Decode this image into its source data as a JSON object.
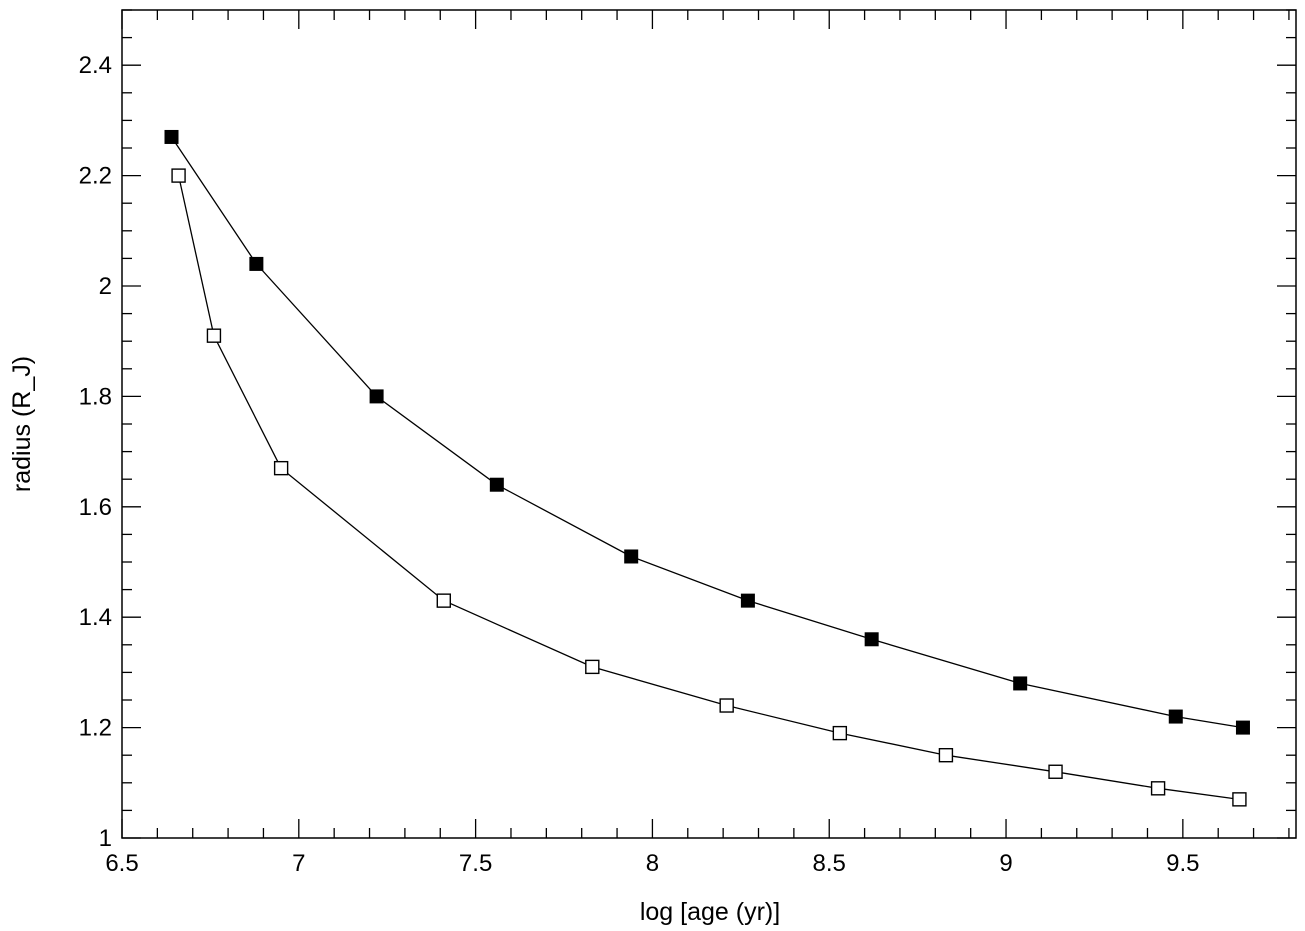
{
  "chart_data": {
    "type": "line",
    "title": "",
    "xlabel": "log [age (yr)]",
    "ylabel": "radius (R_J)",
    "xlim": [
      6.5,
      9.82
    ],
    "ylim": [
      1.0,
      2.5
    ],
    "x_ticks": [
      6.5,
      7,
      7.5,
      8,
      8.5,
      9,
      9.5
    ],
    "x_tick_labels": [
      "6.5",
      "7",
      "7.5",
      "8",
      "8.5",
      "9",
      "9.5"
    ],
    "y_ticks": [
      1,
      1.2,
      1.4,
      1.6,
      1.8,
      2,
      2.2,
      2.4
    ],
    "y_tick_labels": [
      "1",
      "1.2",
      "1.4",
      "1.6",
      "1.8",
      "2",
      "2.2",
      "2.4"
    ],
    "x_minor_step": 0.1,
    "y_minor_step": 0.05,
    "grid": false,
    "legend": "none",
    "series": [
      {
        "marker": "filled-square",
        "color": "#000000",
        "points": [
          {
            "x": 6.64,
            "y": 2.27
          },
          {
            "x": 6.88,
            "y": 2.04
          },
          {
            "x": 7.22,
            "y": 1.8
          },
          {
            "x": 7.56,
            "y": 1.64
          },
          {
            "x": 7.94,
            "y": 1.51
          },
          {
            "x": 8.27,
            "y": 1.43
          },
          {
            "x": 8.62,
            "y": 1.36
          },
          {
            "x": 9.04,
            "y": 1.28
          },
          {
            "x": 9.48,
            "y": 1.22
          },
          {
            "x": 9.67,
            "y": 1.2
          }
        ]
      },
      {
        "marker": "open-square",
        "color": "#000000",
        "points": [
          {
            "x": 6.66,
            "y": 2.2
          },
          {
            "x": 6.76,
            "y": 1.91
          },
          {
            "x": 6.95,
            "y": 1.67
          },
          {
            "x": 7.41,
            "y": 1.43
          },
          {
            "x": 7.83,
            "y": 1.31
          },
          {
            "x": 8.21,
            "y": 1.24
          },
          {
            "x": 8.53,
            "y": 1.19
          },
          {
            "x": 8.83,
            "y": 1.15
          },
          {
            "x": 9.14,
            "y": 1.12
          },
          {
            "x": 9.43,
            "y": 1.09
          },
          {
            "x": 9.66,
            "y": 1.07
          }
        ]
      }
    ]
  }
}
